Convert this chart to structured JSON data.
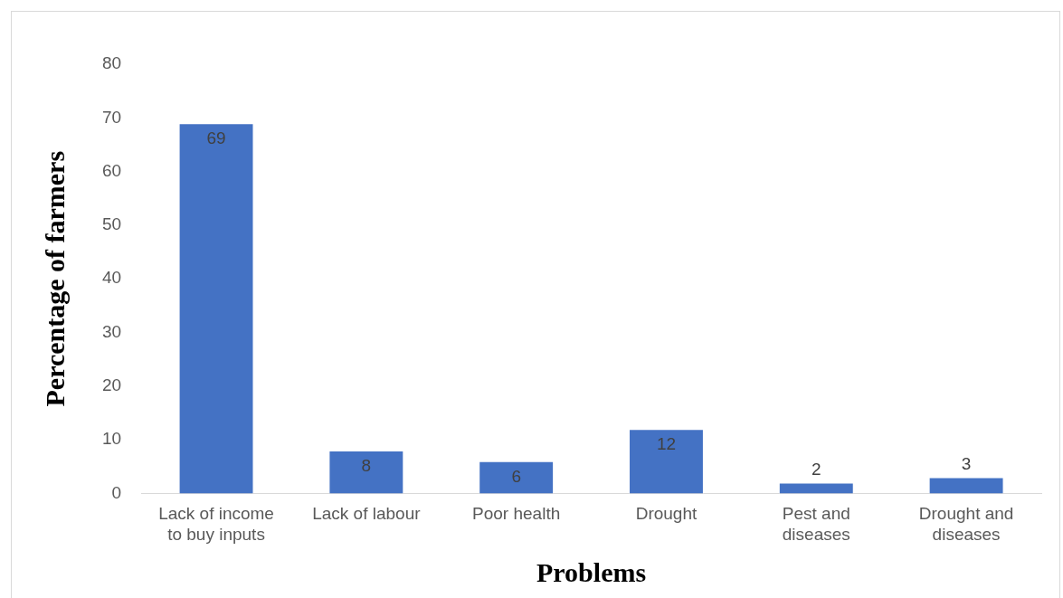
{
  "chart_data": {
    "type": "bar",
    "xlabel": "Problems",
    "ylabel": "Percentage of farmers",
    "categories": [
      "Lack of income to buy inputs",
      "Lack of labour",
      "Poor health",
      "Drought",
      "Pest and diseases",
      "Drought and diseases"
    ],
    "values": [
      69,
      8,
      6,
      12,
      2,
      3
    ],
    "color": "#4472c4",
    "ylim": [
      0,
      80
    ],
    "yticks": [
      0,
      10,
      20,
      30,
      40,
      50,
      60,
      70,
      80
    ],
    "grid": false,
    "legend": false,
    "data_labels": true
  }
}
